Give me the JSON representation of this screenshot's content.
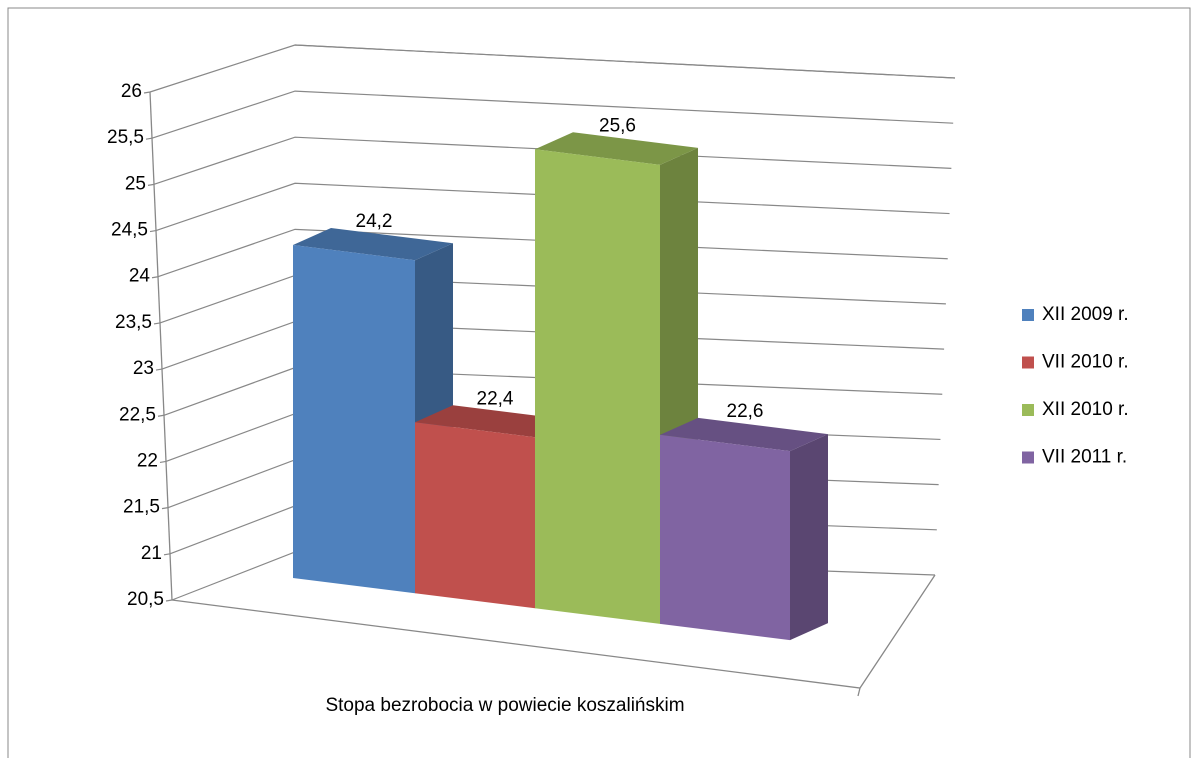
{
  "chart_data": {
    "type": "bar",
    "categories": [
      "Stopa bezrobocia w powiecie koszalińskim"
    ],
    "series": [
      {
        "name": "XII 2009 r.",
        "color": "#4f81bd",
        "values": [
          24.2
        ],
        "value_labels": [
          "24,2"
        ]
      },
      {
        "name": "VII 2010 r.",
        "color": "#c0504d",
        "values": [
          22.4
        ],
        "value_labels": [
          "22,4"
        ]
      },
      {
        "name": "XII 2010 r.",
        "color": "#9bbb59",
        "values": [
          25.6
        ],
        "value_labels": [
          "25,6"
        ]
      },
      {
        "name": "VII 2011 r.",
        "color": "#8064a2",
        "values": [
          22.6
        ],
        "value_labels": [
          "22,6"
        ]
      }
    ],
    "ylim": [
      20.5,
      26
    ],
    "yticks": [
      {
        "value": 20.5,
        "label": "20,5"
      },
      21,
      {
        "value": 21.5,
        "label": "21,5"
      },
      22,
      {
        "value": 22.5,
        "label": "22,5"
      },
      23,
      {
        "value": 23.5,
        "label": "23,5"
      },
      24,
      {
        "value": 24.5,
        "label": "24,5"
      },
      25,
      {
        "value": 25.5,
        "label": "25,5"
      },
      26
    ],
    "grid": true,
    "legend": "right"
  }
}
